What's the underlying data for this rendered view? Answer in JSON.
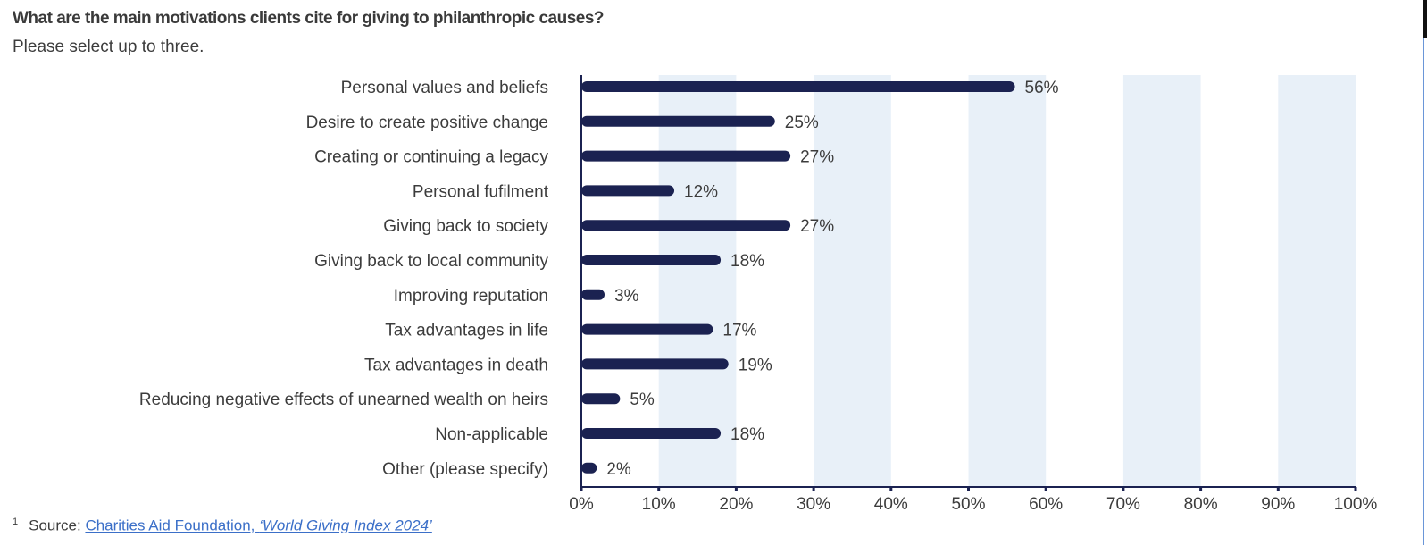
{
  "header": {
    "title": "What are the main motivations clients cite for giving to philanthropic causes?",
    "subtitle": "Please select up to three."
  },
  "footnote": {
    "marker": "1",
    "prefix": "Source: ",
    "link_text": "Charities Aid Foundation, ",
    "link_italic": "‘World Giving Index 2024’"
  },
  "chart_data": {
    "type": "bar",
    "orientation": "horizontal",
    "categories": [
      "Personal values and beliefs",
      "Desire to create positive change",
      "Creating or continuing a legacy",
      "Personal fufilment",
      "Giving back to society",
      "Giving back to local community",
      "Improving reputation",
      "Tax advantages in life",
      "Tax advantages in death",
      "Reducing negative effects of unearned wealth on heirs",
      "Non-applicable",
      "Other (please specify)"
    ],
    "values": [
      56,
      25,
      27,
      12,
      27,
      18,
      3,
      17,
      19,
      5,
      18,
      2
    ],
    "data_labels": [
      "56%",
      "25%",
      "27%",
      "12%",
      "27%",
      "18%",
      "3%",
      "17%",
      "19%",
      "5%",
      "18%",
      "2%"
    ],
    "xlim": [
      0,
      100
    ],
    "x_ticks": [
      "0%",
      "10%",
      "20%",
      "30%",
      "40%",
      "50%",
      "60%",
      "70%",
      "80%",
      "90%",
      "100%"
    ],
    "grid": "alternating shaded vertical bands",
    "bar_color": "#1b2251",
    "band_color": "#e8f0f8",
    "text_color": "#3c3c3c",
    "link_color": "#3b6fc8"
  }
}
